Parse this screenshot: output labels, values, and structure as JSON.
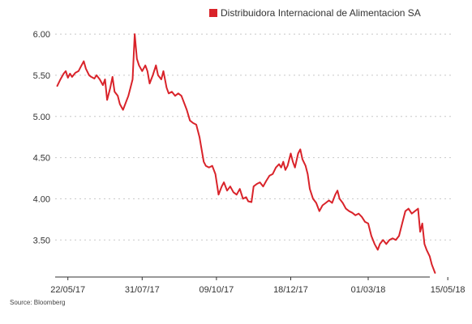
{
  "chart_data": {
    "type": "line",
    "title": "",
    "xlabel": "",
    "ylabel": "",
    "ylim": [
      3.05,
      6.05
    ],
    "grid": true,
    "legend_position": "top-right",
    "y_ticks": [
      "6.00",
      "5.50",
      "5.00",
      "4.50",
      "4.00",
      "3.50"
    ],
    "y_tick_values": [
      6.0,
      5.5,
      5.0,
      4.5,
      4.0,
      3.5
    ],
    "x_ticks": [
      "22/05/17",
      "31/07/17",
      "09/10/17",
      "18/12/17",
      "01/03/18",
      "15/05/18"
    ],
    "x_tick_dates": [
      "2017-05-22",
      "2017-07-31",
      "2017-10-09",
      "2017-12-18",
      "2018-03-01",
      "2018-05-15"
    ],
    "series": [
      {
        "name": "Distribuidora Internacional de Alimentacion SA",
        "color": "#d9232a",
        "points": [
          [
            "2017-05-12",
            5.37
          ],
          [
            "2017-05-15",
            5.45
          ],
          [
            "2017-05-18",
            5.52
          ],
          [
            "2017-05-20",
            5.55
          ],
          [
            "2017-05-22",
            5.47
          ],
          [
            "2017-05-24",
            5.52
          ],
          [
            "2017-05-26",
            5.48
          ],
          [
            "2017-05-29",
            5.53
          ],
          [
            "2017-06-01",
            5.55
          ],
          [
            "2017-06-03",
            5.6
          ],
          [
            "2017-06-06",
            5.67
          ],
          [
            "2017-06-08",
            5.58
          ],
          [
            "2017-06-11",
            5.5
          ],
          [
            "2017-06-13",
            5.48
          ],
          [
            "2017-06-16",
            5.46
          ],
          [
            "2017-06-18",
            5.5
          ],
          [
            "2017-06-21",
            5.45
          ],
          [
            "2017-06-24",
            5.38
          ],
          [
            "2017-06-26",
            5.45
          ],
          [
            "2017-06-28",
            5.2
          ],
          [
            "2017-07-01",
            5.35
          ],
          [
            "2017-07-03",
            5.48
          ],
          [
            "2017-07-05",
            5.3
          ],
          [
            "2017-07-08",
            5.25
          ],
          [
            "2017-07-10",
            5.15
          ],
          [
            "2017-07-13",
            5.08
          ],
          [
            "2017-07-15",
            5.15
          ],
          [
            "2017-07-18",
            5.25
          ],
          [
            "2017-07-20",
            5.35
          ],
          [
            "2017-07-22",
            5.45
          ],
          [
            "2017-07-24",
            6.0
          ],
          [
            "2017-07-26",
            5.7
          ],
          [
            "2017-07-28",
            5.62
          ],
          [
            "2017-07-31",
            5.55
          ],
          [
            "2017-08-03",
            5.62
          ],
          [
            "2017-08-05",
            5.55
          ],
          [
            "2017-08-07",
            5.4
          ],
          [
            "2017-08-10",
            5.5
          ],
          [
            "2017-08-13",
            5.62
          ],
          [
            "2017-08-15",
            5.5
          ],
          [
            "2017-08-18",
            5.45
          ],
          [
            "2017-08-20",
            5.55
          ],
          [
            "2017-08-23",
            5.35
          ],
          [
            "2017-08-25",
            5.28
          ],
          [
            "2017-08-28",
            5.3
          ],
          [
            "2017-08-31",
            5.25
          ],
          [
            "2017-09-03",
            5.28
          ],
          [
            "2017-09-06",
            5.25
          ],
          [
            "2017-09-09",
            5.15
          ],
          [
            "2017-09-11",
            5.08
          ],
          [
            "2017-09-14",
            4.95
          ],
          [
            "2017-09-17",
            4.92
          ],
          [
            "2017-09-20",
            4.9
          ],
          [
            "2017-09-23",
            4.75
          ],
          [
            "2017-09-25",
            4.6
          ],
          [
            "2017-09-27",
            4.45
          ],
          [
            "2017-09-29",
            4.4
          ],
          [
            "2017-10-02",
            4.38
          ],
          [
            "2017-10-05",
            4.4
          ],
          [
            "2017-10-08",
            4.3
          ],
          [
            "2017-10-11",
            4.05
          ],
          [
            "2017-10-14",
            4.15
          ],
          [
            "2017-10-16",
            4.2
          ],
          [
            "2017-10-19",
            4.1
          ],
          [
            "2017-10-22",
            4.15
          ],
          [
            "2017-10-25",
            4.08
          ],
          [
            "2017-10-28",
            4.05
          ],
          [
            "2017-10-31",
            4.12
          ],
          [
            "2017-11-03",
            4.0
          ],
          [
            "2017-11-06",
            4.02
          ],
          [
            "2017-11-08",
            3.97
          ],
          [
            "2017-11-11",
            3.96
          ],
          [
            "2017-11-13",
            4.15
          ],
          [
            "2017-11-16",
            4.18
          ],
          [
            "2017-11-19",
            4.2
          ],
          [
            "2017-11-22",
            4.15
          ],
          [
            "2017-11-25",
            4.22
          ],
          [
            "2017-11-28",
            4.28
          ],
          [
            "2017-12-01",
            4.3
          ],
          [
            "2017-12-04",
            4.38
          ],
          [
            "2017-12-07",
            4.42
          ],
          [
            "2017-12-09",
            4.38
          ],
          [
            "2017-12-11",
            4.45
          ],
          [
            "2017-12-13",
            4.35
          ],
          [
            "2017-12-15",
            4.4
          ],
          [
            "2017-12-18",
            4.55
          ],
          [
            "2017-12-20",
            4.45
          ],
          [
            "2017-12-22",
            4.38
          ],
          [
            "2017-12-25",
            4.55
          ],
          [
            "2017-12-27",
            4.6
          ],
          [
            "2017-12-29",
            4.48
          ],
          [
            "2018-01-01",
            4.4
          ],
          [
            "2018-01-03",
            4.3
          ],
          [
            "2018-01-05",
            4.12
          ],
          [
            "2018-01-08",
            4.0
          ],
          [
            "2018-01-11",
            3.95
          ],
          [
            "2018-01-14",
            3.85
          ],
          [
            "2018-01-17",
            3.92
          ],
          [
            "2018-01-20",
            3.95
          ],
          [
            "2018-01-23",
            3.98
          ],
          [
            "2018-01-26",
            3.95
          ],
          [
            "2018-01-29",
            4.05
          ],
          [
            "2018-01-31",
            4.1
          ],
          [
            "2018-02-02",
            4.0
          ],
          [
            "2018-02-05",
            3.95
          ],
          [
            "2018-02-08",
            3.88
          ],
          [
            "2018-02-11",
            3.85
          ],
          [
            "2018-02-14",
            3.83
          ],
          [
            "2018-02-17",
            3.8
          ],
          [
            "2018-02-20",
            3.82
          ],
          [
            "2018-02-23",
            3.78
          ],
          [
            "2018-02-26",
            3.72
          ],
          [
            "2018-03-01",
            3.7
          ],
          [
            "2018-03-04",
            3.55
          ],
          [
            "2018-03-07",
            3.45
          ],
          [
            "2018-03-10",
            3.38
          ],
          [
            "2018-03-12",
            3.45
          ],
          [
            "2018-03-15",
            3.5
          ],
          [
            "2018-03-18",
            3.45
          ],
          [
            "2018-03-21",
            3.5
          ],
          [
            "2018-03-24",
            3.52
          ],
          [
            "2018-03-27",
            3.5
          ],
          [
            "2018-03-30",
            3.55
          ],
          [
            "2018-04-02",
            3.7
          ],
          [
            "2018-04-05",
            3.85
          ],
          [
            "2018-04-08",
            3.88
          ],
          [
            "2018-04-11",
            3.82
          ],
          [
            "2018-04-14",
            3.85
          ],
          [
            "2018-04-17",
            3.88
          ],
          [
            "2018-04-19",
            3.6
          ],
          [
            "2018-04-21",
            3.7
          ],
          [
            "2018-04-23",
            3.45
          ],
          [
            "2018-04-25",
            3.38
          ],
          [
            "2018-04-28",
            3.3
          ],
          [
            "2018-04-30",
            3.2
          ],
          [
            "2018-05-03",
            3.1
          ]
        ]
      }
    ],
    "legend_label": "Distribuidora Internacional de Alimentacion SA",
    "source_note": "Source: Bloomberg"
  }
}
